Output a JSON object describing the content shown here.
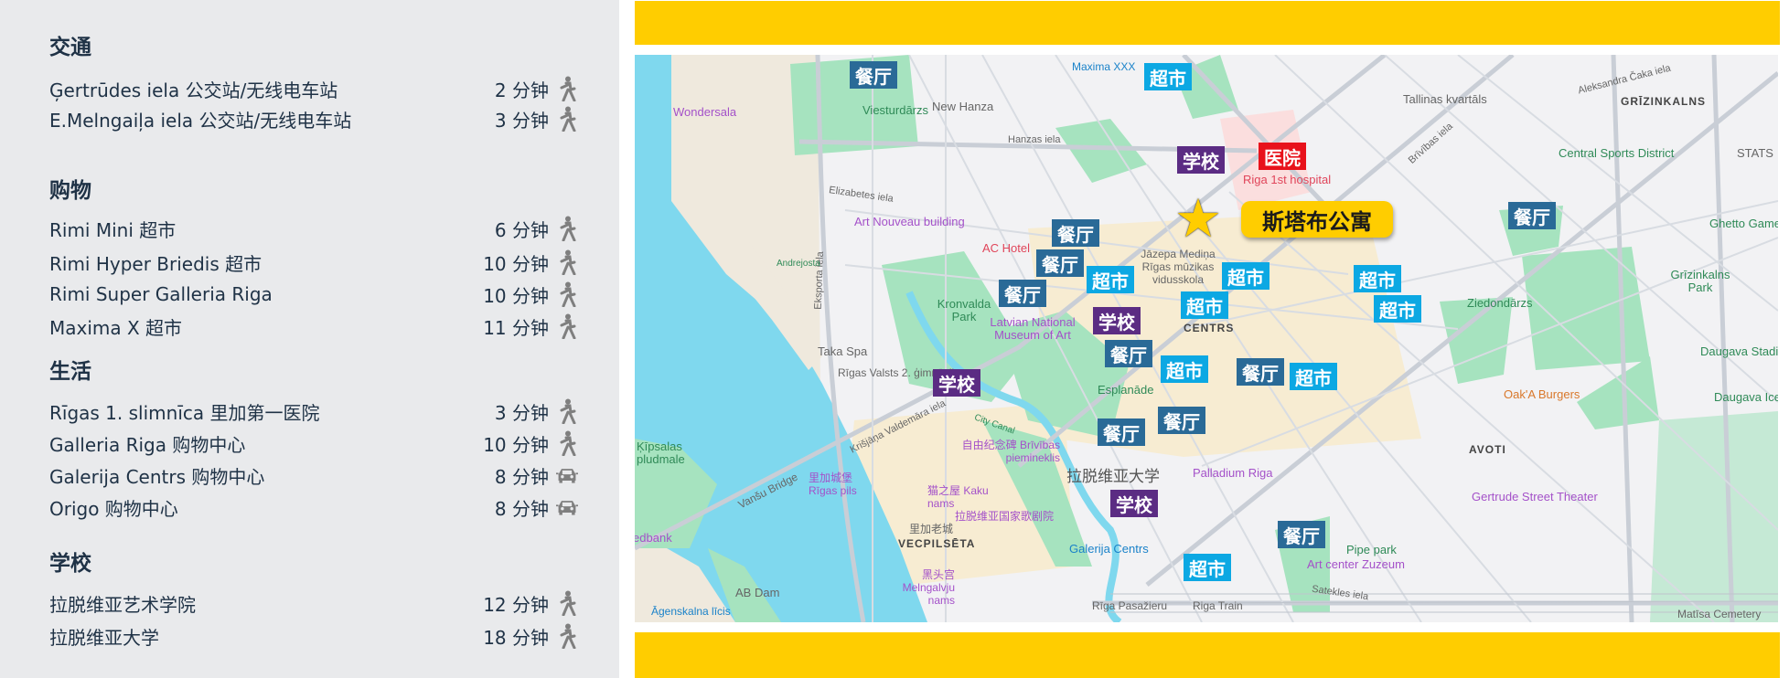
{
  "colors": {
    "accent_yellow": "#ffcd00",
    "restaurant": "#2a6a97",
    "supermarket": "#0ca8e3",
    "school": "#5b2c83",
    "hospital": "#e8121b",
    "panel_bg": "#e9eaec",
    "water": "#7fd8ee",
    "park": "#a6e3bf"
  },
  "panel": {
    "sections": [
      {
        "title": "交通",
        "items": [
          {
            "name": "Ģertrūdes iela 公交站/无线电车站",
            "time": "2 分钟",
            "mode": "walk-icon"
          },
          {
            "name": "E.Melngaiļa iela 公交站/无线电车站",
            "time": "3 分钟",
            "mode": "walk-icon"
          }
        ]
      },
      {
        "title": "购物",
        "items": [
          {
            "name": "Rimi Mini 超市",
            "time": "6 分钟",
            "mode": "walk-icon"
          },
          {
            "name": "Rimi Hyper Briedis 超市",
            "time": "10 分钟",
            "mode": "walk-icon"
          },
          {
            "name": "Rimi Super Galleria Riga",
            "time": "10 分钟",
            "mode": "walk-icon"
          },
          {
            "name": "Maxima X 超市",
            "time": "11 分钟",
            "mode": "walk-icon"
          }
        ]
      },
      {
        "title": "生活",
        "items": [
          {
            "name": "Rīgas 1. slimnīca 里加第一医院",
            "time": "3 分钟",
            "mode": "walk-icon"
          },
          {
            "name": "Galleria Riga 购物中心",
            "time": "10 分钟",
            "mode": "walk-icon"
          },
          {
            "name": "Galerija Centrs 购物中心",
            "time": "8 分钟",
            "mode": "car-icon"
          },
          {
            "name": "Origo 购物中心",
            "time": "8 分钟",
            "mode": "car-icon"
          }
        ]
      },
      {
        "title": "学校",
        "items": [
          {
            "name": "拉脱维亚艺术学院",
            "time": "12 分钟",
            "mode": "walk-icon"
          },
          {
            "name": "拉脱维亚大学",
            "time": "18 分钟",
            "mode": "walk-icon"
          }
        ]
      }
    ]
  },
  "map": {
    "apartment": {
      "label": "斯塔布公寓",
      "marker": "star-icon"
    },
    "badge_text": {
      "restaurant": "餐厅",
      "supermarket": "超市",
      "school": "学校",
      "hospital": "医院"
    },
    "labels": [
      "Wondersala",
      "Viesturdārzs",
      "New Hanza",
      "Hanzas iela",
      "Art Nouveau building",
      "AC Hotel",
      "Kronvalda Park",
      "Latvian National Museum of Art",
      "Taka Spa",
      "Rīgas Valsts 2. ģimnāzija",
      "Esplanāde",
      "CENTRS",
      "Riga 1st hospital",
      "Tallinas kvartāls",
      "GRĪZINKALNS",
      "Central Sports District",
      "STATS",
      "Ghetto Games",
      "Grīzinkalns Park",
      "Ziedondārzs",
      "Jāzepa Mediņa Rīgas mūzikas vidusskola",
      "Daugava Stadium",
      "Oak'A Burgers",
      "Daugava Ice",
      "AVOTI",
      "Gertrude Street Theater",
      "Palladium Riga",
      "Pipe park",
      "Art center Zuzeum",
      "Satekles iela",
      "Rīga Pasažieru",
      "Riga Train",
      "Matīsa Cemetery",
      "Vanšu Bridge",
      "Ķīpsalas pludmale",
      "Swedbank",
      "AB Dam",
      "Āgenskalna līcis",
      "里加城堡 Rīgas pils",
      "猫之屋 Kaku nams",
      "自由纪念碑 Brīvības piemineklis",
      "拉脱维亚大学",
      "拉脱维亚国家歌剧院",
      "里加老城",
      "VECPILSĒTA",
      "Galerija Centrs",
      "黑头宫 Melngalvju nams",
      "Maxima XXX",
      "Eksporta iela",
      "Krišjāņa Valdemāra iela",
      "Brīvības iela",
      "Aleksandra Čaka iela",
      "Elizabetes iela",
      "City Canal",
      "Andrejosta"
    ]
  }
}
